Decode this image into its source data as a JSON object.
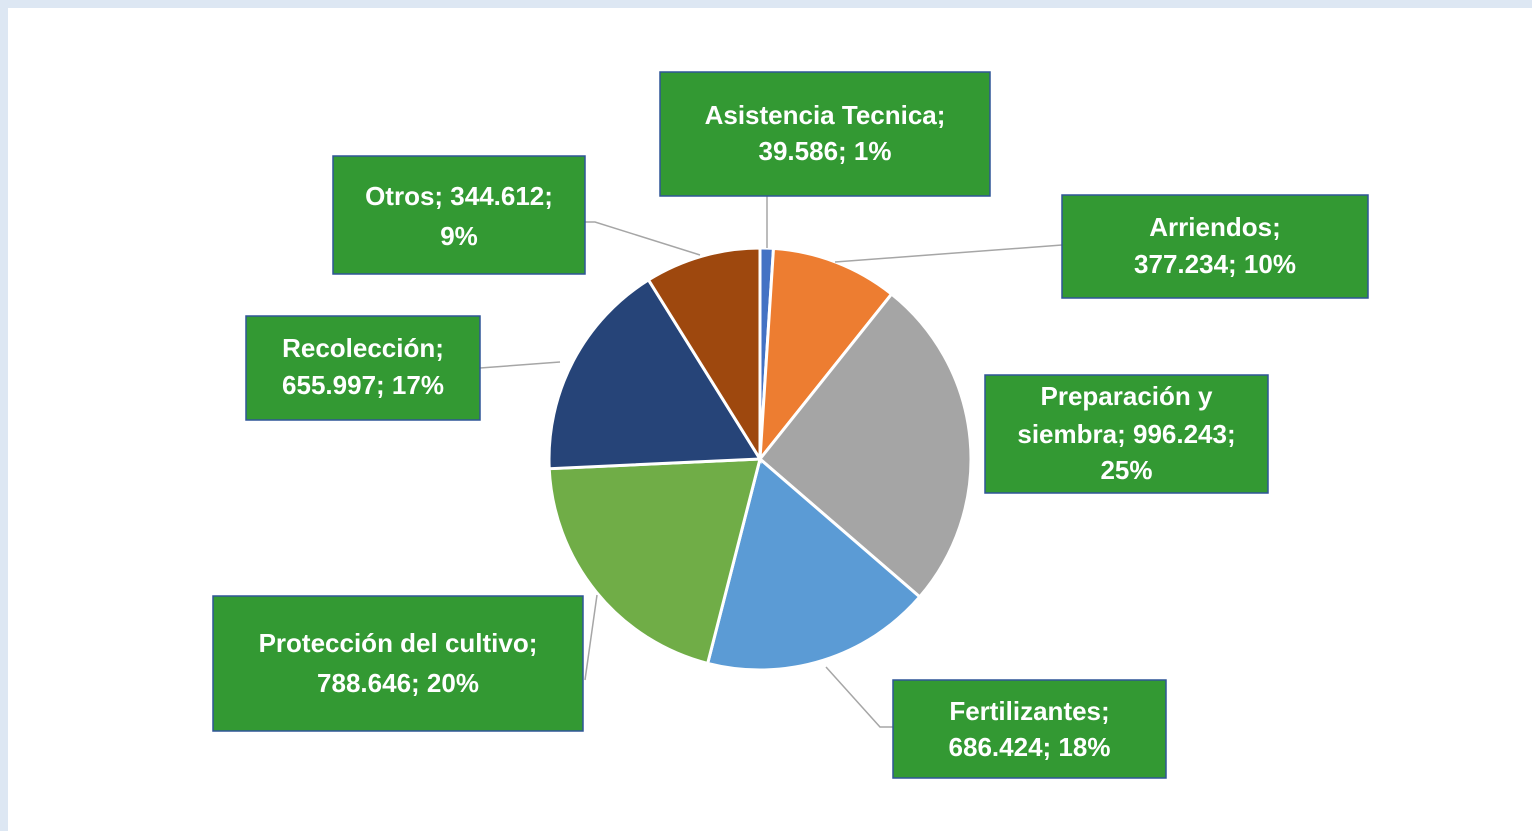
{
  "chart_data": {
    "type": "pie",
    "values": [
      39586,
      377234,
      996243,
      686424,
      788646,
      655997,
      344612
    ],
    "value_labels": [
      [
        "Asistencia Tecnica;",
        "39.586; 1%"
      ],
      [
        "Arriendos;",
        "377.234; 10%"
      ],
      [
        "Preparación y",
        "siembra; 996.243;",
        "25%"
      ],
      [
        "Fertilizantes;",
        "686.424; 18%"
      ],
      [
        "Protección del cultivo;",
        "788.646; 20%"
      ],
      [
        "Recolección;",
        "655.997; 17%"
      ],
      [
        "Otros; 344.612;",
        "9%"
      ]
    ],
    "colors": [
      "#4472c4",
      "#ed7d31",
      "#a5a5a5",
      "#5b9bd5",
      "#70ad47",
      "#264478",
      "#9e480e"
    ]
  }
}
